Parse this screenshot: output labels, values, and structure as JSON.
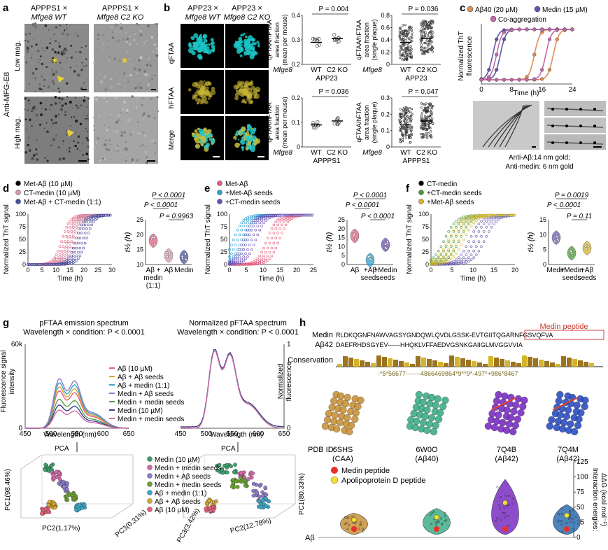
{
  "panels": {
    "a": {
      "letter": "a",
      "col1": [
        "APPPS1 ×",
        "Mfge8 WT"
      ],
      "col2": [
        "APPPS1 ×",
        "Mfge8 C2 KO"
      ],
      "rows": [
        "Low mag.",
        "High mag."
      ],
      "side": "Anti-MFG-E8"
    },
    "b": {
      "letter": "b",
      "col1": [
        "APP23 ×",
        "Mfge8 WT"
      ],
      "col2": [
        "APP23 ×",
        "Mfge8 C2 KO"
      ],
      "rows": [
        "qFTAA",
        "hFTAA",
        "Merge"
      ],
      "plots": [
        {
          "p": "P = 0.004",
          "ylabel": [
            "qFTAA/hFTAA",
            "area fraction",
            "(mean per mouse)"
          ],
          "yticks": [
            "0.2",
            "0.3",
            "0.4"
          ],
          "group": "APP23",
          "ref": 0.27,
          "kind": "mouse"
        },
        {
          "p": "P = 0.036",
          "ylabel": [
            "qFTAA/hFTAA",
            "area fraction",
            "(single plaque)"
          ],
          "yticks": [
            "0",
            "0.2",
            "0.4",
            "0.6",
            "0.8"
          ],
          "group": "APP23",
          "ref": 0.3,
          "kind": "plaque"
        },
        {
          "p": "P = 0.036",
          "ylabel": [
            "qFTAA/hFTAA",
            "area fraction",
            "(mean per mouse)"
          ],
          "yticks": [
            "0",
            "0.1",
            "0.2"
          ],
          "group": "APPPS1",
          "ref": 0.06,
          "kind": "mouse"
        },
        {
          "p": "P = 0.047",
          "ylabel": [
            "qFTAA/hFTAA",
            "area fraction",
            "(single plaque)"
          ],
          "yticks": [
            "0",
            "0.1",
            "0.2",
            "0.3"
          ],
          "group": "APPPS1",
          "ref": 0.07,
          "kind": "plaque"
        }
      ],
      "xlabel_prefix": "Mfge8",
      "xcats": [
        "WT",
        "C2 KO"
      ]
    },
    "c": {
      "letter": "c",
      "legend": [
        "Aβ40 (20 µM)",
        "Medin (15 µM)",
        "Co-aggregation"
      ],
      "ylabel": [
        "Normalized ThT",
        "fluorescence"
      ],
      "xlabel": "Time (h)",
      "xticks": [
        "0",
        "8",
        "16",
        "24"
      ],
      "caption": [
        "Anti-Aβ:14 nm gold;",
        "Anti-medin: 6 nm gold"
      ]
    },
    "d": {
      "letter": "d",
      "legend": [
        "Met-Aβ (10 µM)",
        "CT-medin (10 µM)",
        "Met-Aβ + CT-medin (1:1)"
      ],
      "ylabel": "Normalized ThT signal",
      "xlabel": "Time (h)",
      "xticks": [
        "0",
        "5",
        "10",
        "15",
        "20",
        "25",
        "30"
      ],
      "yticks": [
        "0",
        "25",
        "50",
        "75",
        "100"
      ],
      "tlabel": "t",
      "tsub": "1/2",
      "tunit": "(h)",
      "tyticks": [
        "10",
        "12.5",
        "15",
        "17.5",
        "20",
        "22.5",
        "25"
      ],
      "cats": [
        [
          "Aβ +",
          "medin",
          "(1:1)"
        ],
        [
          "Aβ"
        ],
        [
          "Medin"
        ]
      ],
      "pvals": [
        "P < 0.0001",
        "P < 0.0001",
        "P = 0.9963"
      ]
    },
    "e": {
      "letter": "e",
      "legend": [
        "Met-Aβ",
        "+Met-Aβ seeds",
        "+CT-medin seeds"
      ],
      "ylabel": "Normalized ThT signal",
      "xlabel": "Time (h)",
      "xticks": [
        "0",
        "5",
        "10",
        "15",
        "20",
        "25"
      ],
      "yticks": [
        "0",
        "25",
        "50",
        "75",
        "100"
      ],
      "tyticks": [
        "0",
        "5",
        "10",
        "15",
        "20",
        "25"
      ],
      "cats": [
        [
          "Aβ"
        ],
        [
          "+Aβ",
          "seeds"
        ],
        [
          "+Medin",
          "seeds"
        ]
      ],
      "pvals": [
        "P < 0.0001",
        "P < 0.0001",
        "P < 0.0001"
      ]
    },
    "f": {
      "letter": "f",
      "legend": [
        "CT-medin",
        "+CT-medin seeds",
        "+Met-Aβ seeds"
      ],
      "ylabel": "Normalized ThT signal",
      "xlabel": "Time (h)",
      "xticks": [
        "0",
        "5",
        "10",
        "15",
        "20"
      ],
      "yticks": [
        "0",
        "25",
        "50",
        "75",
        "100"
      ],
      "tyticks": [
        "0",
        "5",
        "10",
        "15"
      ],
      "cats": [
        [
          "Medin"
        ],
        [
          "+Medin",
          "seeds"
        ],
        [
          "+Aβ",
          "seeds"
        ]
      ],
      "pvals": [
        "P = 0.0019",
        "P < 0.0001",
        "P = 0.11"
      ]
    },
    "g": {
      "letter": "g",
      "left_title": [
        "pFTAA emission spectrum",
        "Wavelength × condition: P < 0.0001"
      ],
      "right_title": [
        "Normalized pFTAA spectrum",
        "Wavelength × condition: P < 0.0001"
      ],
      "left_ylabel": [
        "Fluorescence signal",
        "intensity"
      ],
      "left_yticks": [
        "0",
        "60k"
      ],
      "right_ylabel": [
        "Normalized",
        "fluorescence"
      ],
      "right_yticks": [
        "0",
        "1"
      ],
      "xlabel": "Wavelength (nm)",
      "xticks": [
        "450",
        "500",
        "550",
        "600",
        "650"
      ],
      "legend": [
        "Aβ (10 µM)",
        "Aβ + Aβ seeds",
        "Aβ + medin (1:1)",
        "Medin + Aβ seeds",
        "Medin + medin seeds",
        "Medin (10 µM)",
        "Medin + medin seeds"
      ],
      "pca_legend": [
        "Medin (10 µM)",
        "Medin + medin seeds",
        "Medin + Aβ seeds",
        "Medin + medin seeds",
        "Aβ + medin (1:1)",
        "Aβ + Aβ seeds",
        "Aβ (10 µM)"
      ],
      "pca": "PCA",
      "left_axes": [
        "PC1(98.46%)",
        "PC2(1.17%)",
        "PC3(0.31%)"
      ],
      "right_axes": [
        "PC1(80.33%)",
        "PC2(12.78%)",
        "PC3(3.42%)"
      ]
    },
    "h": {
      "letter": "h",
      "medin_label": "Medin",
      "abeta_label": "Aβ42",
      "medin_seq": "RLDKQGNFNAWVAGSYGNDQWLQVDLGSSK-EVTGIITQGARNFGSVQFVA",
      "abeta_seq": "DAEFRHDSGYEV------HHQKLVFFAEDVGSNKGAIIGLMVGGVVIA",
      "peptide_box": "Medin peptide",
      "conservation": "Conservation",
      "cons_string": "-*5*56677-------4866469864*9**9*-497*+986*8467",
      "pdb_label": "PDB ID:",
      "pdbs": [
        {
          "id": "6SHS",
          "sub": "(CAA)",
          "color": "#c8923a"
        },
        {
          "id": "6W0O",
          "sub": "(Aβ40)",
          "color": "#3fae8a"
        },
        {
          "id": "7Q4B",
          "sub": "(Aβ42)",
          "color": "#7a2fc2"
        },
        {
          "id": "7Q4M",
          "sub": "(Aβ42)",
          "color": "#2d4fc0"
        }
      ],
      "legend": [
        "Medin peptide",
        "Apolipoprotein D peptide"
      ],
      "ylabel": [
        "Interaction energies:",
        "ΔΔG (kcal mol⁻¹)"
      ],
      "yticks": [
        "0",
        "25",
        "50",
        "75",
        "100",
        "125"
      ],
      "abeta_axis": "Aβ"
    }
  },
  "colors": {
    "abeta": "#c2355a",
    "abeta_light": "#e58aa8",
    "medin": "#3b3f8e",
    "co": "#b85c90",
    "seedA": "#2a9fd0",
    "seedM": "#6a4fb0",
    "yellow": "#d4b52a",
    "green": "#4a9a3a"
  }
}
